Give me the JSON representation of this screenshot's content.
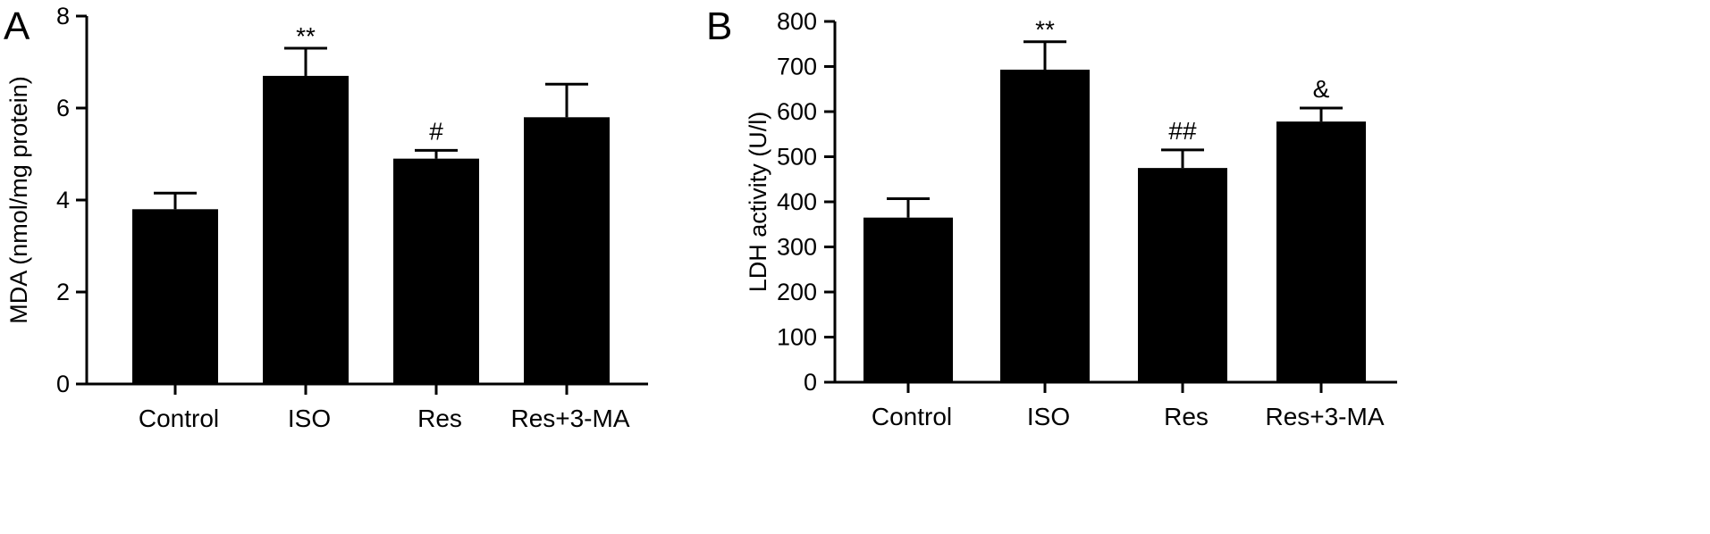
{
  "chart_data": [
    {
      "type": "bar",
      "panel": "A",
      "categories": [
        "Control",
        "ISO",
        "Res",
        "Res+3-MA"
      ],
      "values": [
        3.8,
        6.7,
        4.9,
        5.8
      ],
      "error": [
        0.35,
        0.6,
        0.18,
        0.72
      ],
      "annotations": [
        "",
        "**",
        "#",
        ""
      ],
      "ylabel": "MDA (nmol/mg protein)",
      "xlabel": "",
      "ylim": [
        0,
        8
      ],
      "yticks": [
        0,
        2,
        4,
        6,
        8
      ],
      "grid": false,
      "bar_color": "#000000"
    },
    {
      "type": "bar",
      "panel": "B",
      "categories": [
        "Control",
        "ISO",
        "Res",
        "Res+3-MA"
      ],
      "values": [
        365,
        693,
        475,
        578
      ],
      "error": [
        42,
        62,
        40,
        30
      ],
      "annotations": [
        "",
        "**",
        "##",
        "&"
      ],
      "ylabel": "LDH activity (U/l)",
      "xlabel": "",
      "ylim": [
        0,
        800
      ],
      "yticks": [
        0,
        100,
        200,
        300,
        400,
        500,
        600,
        700,
        800
      ],
      "grid": false,
      "bar_color": "#000000"
    }
  ]
}
